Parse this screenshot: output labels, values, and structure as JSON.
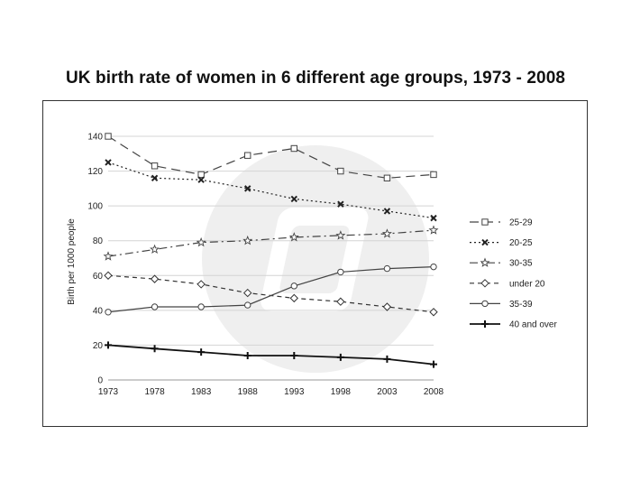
{
  "chart_data": {
    "type": "line",
    "title": "UK birth rate of women in 6 different age groups, 1973 - 2008",
    "xlabel": "",
    "ylabel": "Birth per 1000 people",
    "x": [
      "1973",
      "1978",
      "1983",
      "1988",
      "1993",
      "1998",
      "2003",
      "2008"
    ],
    "ylim": [
      0,
      140
    ],
    "yticks": [
      0,
      20,
      40,
      60,
      80,
      100,
      120,
      140
    ],
    "grid": true,
    "legend_position": "right",
    "series": [
      {
        "name": "25-29",
        "values": [
          140,
          123,
          118,
          129,
          133,
          120,
          116,
          118
        ],
        "marker": "square",
        "dash": "long-dash",
        "color": "#444444"
      },
      {
        "name": "20-25",
        "values": [
          125,
          116,
          115,
          110,
          104,
          101,
          97,
          93
        ],
        "marker": "x",
        "dash": "dotted",
        "color": "#222222"
      },
      {
        "name": "30-35",
        "values": [
          71,
          75,
          79,
          80,
          82,
          83,
          84,
          86
        ],
        "marker": "star",
        "dash": "dash-dot",
        "color": "#444444"
      },
      {
        "name": "under 20",
        "values": [
          60,
          58,
          55,
          50,
          47,
          45,
          42,
          39
        ],
        "marker": "diamond",
        "dash": "dashed",
        "color": "#333333"
      },
      {
        "name": "35-39",
        "values": [
          39,
          42,
          42,
          43,
          54,
          62,
          64,
          65
        ],
        "marker": "circle",
        "dash": "solid",
        "color": "#444444"
      },
      {
        "name": "40 and over",
        "values": [
          20,
          18,
          16,
          14,
          14,
          13,
          12,
          9
        ],
        "marker": "plus",
        "dash": "solid-thick",
        "color": "#111111"
      }
    ]
  },
  "watermark": {
    "icon": "app-logo-icon"
  }
}
